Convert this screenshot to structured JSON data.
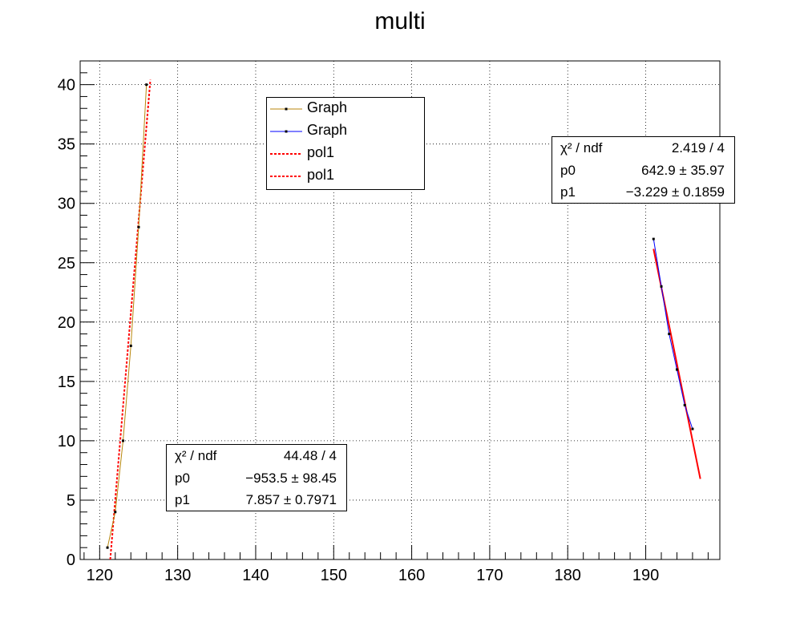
{
  "title": "multi",
  "legend": {
    "entries": [
      {
        "label": "Graph",
        "color": "#b8860b",
        "style": "line-marker"
      },
      {
        "label": "Graph",
        "color": "#0000ff",
        "style": "line-marker"
      },
      {
        "label": "pol1",
        "color": "#ff0000",
        "style": "dashed"
      },
      {
        "label": "pol1",
        "color": "#ff0000",
        "style": "dashed"
      }
    ]
  },
  "stats": [
    {
      "rows": [
        {
          "key": "χ² / ndf",
          "value": "44.48 / 4"
        },
        {
          "key": "p0",
          "value": "−953.5 ± 98.45"
        },
        {
          "key": "p1",
          "value": "7.857 ± 0.7971"
        }
      ]
    },
    {
      "rows": [
        {
          "key": "χ² / ndf",
          "value": "2.419 / 4"
        },
        {
          "key": "p0",
          "value": "642.9 ± 35.97"
        },
        {
          "key": "p1",
          "value": "−3.229 ± 0.1859"
        }
      ]
    }
  ],
  "chart_data": {
    "type": "scatter",
    "title": "multi",
    "xlim": [
      117.5,
      199.5
    ],
    "ylim": [
      0,
      42
    ],
    "x_ticks": [
      120,
      130,
      140,
      150,
      160,
      170,
      180,
      190
    ],
    "y_ticks": [
      0,
      5,
      10,
      15,
      20,
      25,
      30,
      35,
      40
    ],
    "grid": true,
    "legend_position": "top-center",
    "series": [
      {
        "name": "Graph",
        "color": "#b8860b",
        "x": [
          121,
          122,
          123,
          124,
          125,
          126
        ],
        "y": [
          1,
          4,
          10,
          18,
          28,
          40
        ]
      },
      {
        "name": "Graph",
        "color": "#0000ff",
        "x": [
          191,
          192,
          193,
          194,
          195,
          196
        ],
        "y": [
          27,
          23,
          19,
          16,
          13,
          11
        ]
      }
    ],
    "fits": [
      {
        "name": "pol1",
        "color": "#ff0000",
        "p0": -953.5,
        "p1": 7.857,
        "x_range": [
          121,
          126.5
        ]
      },
      {
        "name": "pol1",
        "color": "#ff0000",
        "p0": 642.9,
        "p1": -3.229,
        "x_range": [
          191,
          197
        ]
      }
    ]
  }
}
